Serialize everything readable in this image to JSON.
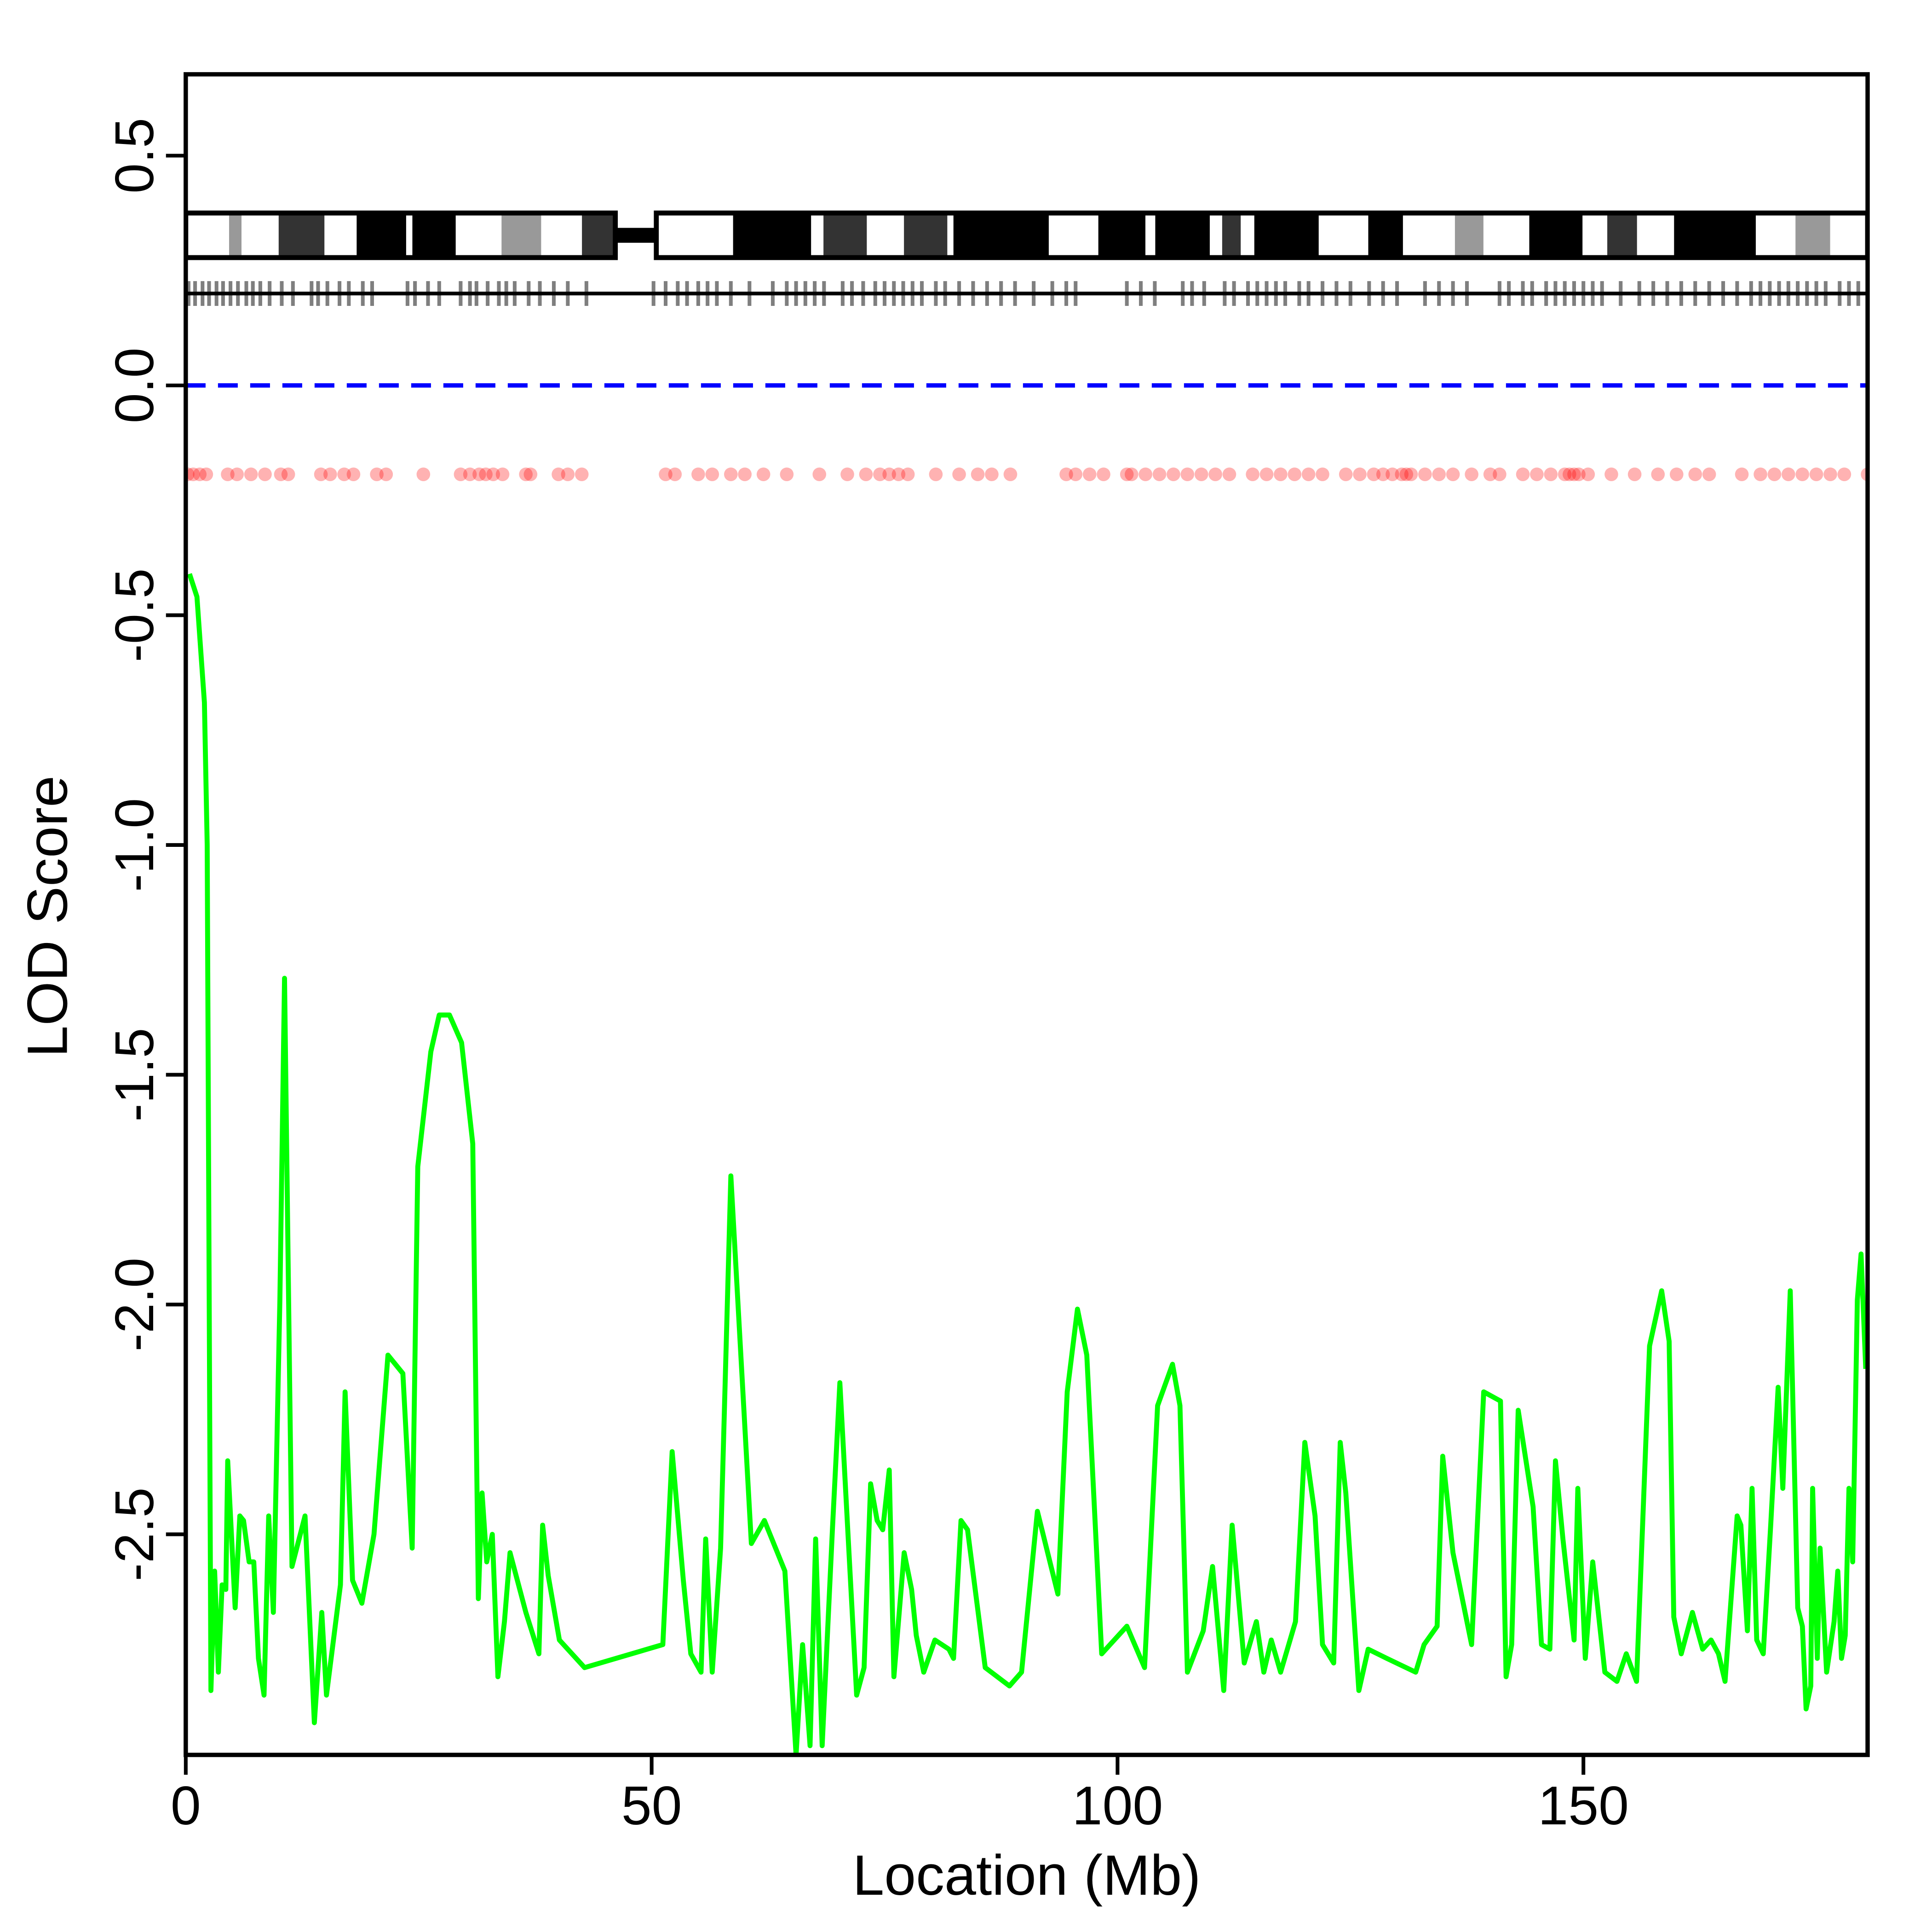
{
  "chart_data": {
    "type": "line",
    "xlabel": "Location (Mb)",
    "ylabel": "LOD Score",
    "xlim": [
      0,
      180.5
    ],
    "ylim": [
      -2.98,
      0.677
    ],
    "xticks": [
      0,
      50,
      100,
      150
    ],
    "yticks": [
      0.5,
      {
        "value": 0,
        "label": "0.0"
      },
      -0.5,
      {
        "value": -1,
        "label": "-1.0"
      },
      -1.5,
      {
        "value": -2,
        "label": "-2.0"
      },
      -2.5
    ],
    "color": "#00ff00",
    "reference_line": {
      "value": 0,
      "color": "#0000ff"
    },
    "x": [
      0.4,
      1.2,
      2.0,
      2.3,
      2.7,
      3.1,
      3.5,
      3.9,
      4.3,
      4.5,
      5.3,
      5.8,
      6.2,
      6.8,
      7.3,
      7.8,
      8.4,
      8.9,
      9.4,
      10.1,
      10.6,
      11.4,
      12.8,
      13.8,
      14.6,
      15.1,
      16.6,
      17.1,
      17.9,
      18.9,
      20.2,
      21.7,
      23.3,
      24.3,
      24.9,
      26.3,
      27.2,
      28.3,
      29.6,
      30.8,
      31.4,
      31.8,
      32.3,
      32.9,
      33.5,
      34.2,
      34.8,
      36.5,
      37.9,
      38.3,
      38.9,
      40.1,
      42.8,
      51.2,
      52.2,
      53.4,
      54.2,
      55.3,
      55.8,
      56.5,
      57.4,
      58.5,
      60.7,
      62.1,
      64.3,
      65.5,
      66.2,
      67.0,
      67.6,
      68.3,
      69.4,
      70.2,
      71.1,
      72.0,
      72.8,
      73.5,
      74.2,
      74.8,
      75.5,
      76.0,
      77.1,
      77.9,
      78.4,
      79.2,
      80.4,
      81.9,
      82.4,
      83.2,
      83.9,
      85.8,
      88.4,
      89.7,
      91.4,
      93.6,
      94.6,
      95.7,
      96.7,
      98.3,
      101.0,
      102.9,
      104.3,
      105.9,
      106.7,
      107.5,
      109.2,
      110.2,
      111.4,
      112.3,
      113.6,
      114.9,
      115.7,
      116.5,
      117.5,
      119.1,
      120.1,
      121.2,
      122.0,
      123.2,
      123.9,
      124.5,
      125.9,
      126.9,
      128.9,
      132.0,
      132.9,
      134.3,
      134.9,
      136.0,
      138.0,
      139.3,
      141.1,
      141.7,
      142.3,
      143.0,
      144.6,
      145.5,
      146.4,
      147.0,
      147.8,
      149.0,
      149.4,
      150.2,
      151.0,
      152.3,
      153.6,
      154.6,
      155.7,
      157.1,
      158.4,
      159.2,
      159.7,
      160.5,
      161.7,
      162.8,
      163.7,
      164.5,
      165.2,
      166.5,
      166.9,
      167.6,
      168.1,
      168.6,
      169.3,
      170.1,
      170.9,
      171.4,
      172.2,
      173.0,
      173.5,
      173.9,
      174.4,
      174.6,
      175.1,
      175.4,
      176.1,
      176.9,
      177.3,
      177.7,
      178.1,
      178.5,
      178.9,
      179.4,
      179.8,
      180.3
    ],
    "values": [
      -0.41,
      -0.46,
      -0.69,
      -1.0,
      -2.84,
      -2.58,
      -2.8,
      -2.61,
      -2.62,
      -2.34,
      -2.66,
      -2.46,
      -2.47,
      -2.56,
      -2.56,
      -2.77,
      -2.85,
      -2.46,
      -2.67,
      -1.99,
      -1.29,
      -2.57,
      -2.46,
      -2.91,
      -2.67,
      -2.85,
      -2.61,
      -2.19,
      -2.6,
      -2.65,
      -2.5,
      -2.11,
      -2.15,
      -2.53,
      -1.7,
      -1.45,
      -1.37,
      -1.37,
      -1.43,
      -1.65,
      -2.64,
      -2.41,
      -2.56,
      -2.5,
      -2.81,
      -2.69,
      -2.54,
      -2.67,
      -2.76,
      -2.48,
      -2.59,
      -2.73,
      -2.79,
      -2.74,
      -2.32,
      -2.6,
      -2.76,
      -2.8,
      -2.51,
      -2.8,
      -2.53,
      -1.72,
      -2.52,
      -2.47,
      -2.58,
      -2.98,
      -2.74,
      -2.96,
      -2.51,
      -2.96,
      -2.49,
      -2.17,
      -2.51,
      -2.85,
      -2.79,
      -2.39,
      -2.47,
      -2.49,
      -2.36,
      -2.81,
      -2.54,
      -2.62,
      -2.72,
      -2.8,
      -2.73,
      -2.75,
      -2.77,
      -2.47,
      -2.49,
      -2.79,
      -2.83,
      -2.8,
      -2.45,
      -2.63,
      -2.19,
      -2.01,
      -2.11,
      -2.76,
      -2.7,
      -2.79,
      -2.22,
      -2.13,
      -2.22,
      -2.8,
      -2.71,
      -2.57,
      -2.84,
      -2.48,
      -2.78,
      -2.69,
      -2.8,
      -2.73,
      -2.8,
      -2.69,
      -2.3,
      -2.46,
      -2.74,
      -2.78,
      -2.3,
      -2.41,
      -2.84,
      -2.75,
      -2.77,
      -2.8,
      -2.74,
      -2.7,
      -2.33,
      -2.54,
      -2.74,
      -2.19,
      -2.21,
      -2.81,
      -2.74,
      -2.23,
      -2.44,
      -2.74,
      -2.75,
      -2.34,
      -2.51,
      -2.73,
      -2.4,
      -2.77,
      -2.56,
      -2.8,
      -2.82,
      -2.76,
      -2.82,
      -2.09,
      -1.97,
      -2.08,
      -2.68,
      -2.76,
      -2.67,
      -2.75,
      -2.73,
      -2.76,
      -2.82,
      -2.46,
      -2.48,
      -2.71,
      -2.4,
      -2.73,
      -2.76,
      -2.48,
      -2.18,
      -2.4,
      -1.97,
      -2.66,
      -2.7,
      -2.88,
      -2.83,
      -2.4,
      -2.77,
      -2.53,
      -2.8,
      -2.69,
      -2.58,
      -2.77,
      -2.72,
      -2.4,
      -2.56,
      -1.99,
      -1.89,
      -2.14
    ],
    "ideogram": {
      "arms": [
        [
          0,
          46.1
        ],
        [
          50.5,
          180.5
        ]
      ],
      "bands": [
        {
          "start": 4.65,
          "end": 5.98,
          "color": "#999999"
        },
        {
          "start": 9.97,
          "end": 14.88,
          "color": "#333333"
        },
        {
          "start": 18.34,
          "end": 23.65,
          "color": "#000000"
        },
        {
          "start": 24.32,
          "end": 28.97,
          "color": "#000000"
        },
        {
          "start": 33.89,
          "end": 38.14,
          "color": "#999999"
        },
        {
          "start": 42.52,
          "end": 46.11,
          "color": "#333333"
        },
        {
          "start": 58.74,
          "end": 67.11,
          "color": "#000000"
        },
        {
          "start": 68.44,
          "end": 73.09,
          "color": "#333333"
        },
        {
          "start": 77.08,
          "end": 81.73,
          "color": "#333333"
        },
        {
          "start": 82.39,
          "end": 92.62,
          "color": "#000000"
        },
        {
          "start": 97.94,
          "end": 102.99,
          "color": "#000000"
        },
        {
          "start": 104.05,
          "end": 109.9,
          "color": "#000000"
        },
        {
          "start": 111.23,
          "end": 113.22,
          "color": "#333333"
        },
        {
          "start": 114.68,
          "end": 121.59,
          "color": "#000000"
        },
        {
          "start": 126.91,
          "end": 130.63,
          "color": "#000000"
        },
        {
          "start": 136.21,
          "end": 139.27,
          "color": "#999999"
        },
        {
          "start": 144.19,
          "end": 149.9,
          "color": "#000000"
        },
        {
          "start": 152.56,
          "end": 155.75,
          "color": "#333333"
        },
        {
          "start": 159.73,
          "end": 168.5,
          "color": "#000000"
        },
        {
          "start": 172.76,
          "end": 176.48,
          "color": "#999999"
        }
      ]
    },
    "markers": [
      0.3,
      1,
      1.8,
      2.5,
      3.3,
      4,
      4.8,
      5.6,
      6.5,
      7.2,
      8,
      9,
      10.3,
      11.5,
      13.5,
      14.2,
      15.2,
      16.5,
      17.5,
      19,
      20,
      23.8,
      24.6,
      26,
      27.2,
      29.5,
      30.5,
      31.2,
      32.4,
      33.6,
      34.4,
      35.3,
      36.8,
      38,
      39.5,
      41,
      43,
      50.2,
      51.5,
      52.8,
      53.8,
      55,
      56,
      57,
      58.5,
      60.5,
      63,
      64.5,
      65.5,
      66.5,
      67.5,
      68.5,
      70.5,
      71.5,
      72.7,
      74,
      75,
      76,
      77,
      78,
      79,
      80.5,
      81.5,
      83,
      84.5,
      86,
      87.5,
      89,
      91,
      93,
      94.5,
      95.5,
      101,
      102.5,
      104,
      107,
      108,
      109.3,
      111.5,
      112.5,
      114,
      115,
      116,
      117,
      118,
      119.5,
      120.5,
      122,
      123.5,
      125,
      127,
      128.5,
      130,
      133,
      134.5,
      136,
      137.5,
      141,
      142,
      143.5,
      144.5,
      146,
      147,
      148,
      149,
      150,
      151,
      152,
      154,
      156,
      157.5,
      159,
      160.5,
      162,
      163.5,
      165,
      166.5,
      168,
      169,
      170,
      171,
      172,
      173,
      174,
      175,
      176,
      177.5,
      178.5,
      179.5
    ],
    "dots": [
      0.2,
      0.8,
      1.5,
      2.2,
      4.5,
      5.5,
      7,
      8.5,
      10.2,
      11,
      14.5,
      15.5,
      17,
      18,
      20.5,
      21.5,
      25.5,
      29.5,
      30.5,
      31.5,
      32.2,
      33,
      34,
      36.5,
      37,
      40,
      41,
      42.5,
      51.5,
      52.5,
      55,
      56.5,
      58.5,
      60,
      62,
      64.5,
      68,
      71,
      73,
      74.5,
      75.5,
      76.5,
      77.5,
      80.5,
      83,
      85,
      86.5,
      88.5,
      94.5,
      95.5,
      97,
      98.5,
      101,
      101.5,
      103,
      104.5,
      106,
      107.5,
      109,
      110.5,
      112,
      114.5,
      116,
      117.5,
      119,
      120.5,
      122,
      124.5,
      126,
      127.5,
      128.5,
      129.5,
      130.5,
      131,
      131.5,
      133,
      134.5,
      136,
      138,
      140,
      141,
      143.5,
      145,
      146.5,
      148,
      148.5,
      149,
      149.5,
      150.5,
      153,
      155.5,
      158,
      160,
      162,
      163.5,
      167,
      169,
      170.5,
      172,
      173.5,
      175,
      176.5,
      178,
      180.5
    ]
  }
}
